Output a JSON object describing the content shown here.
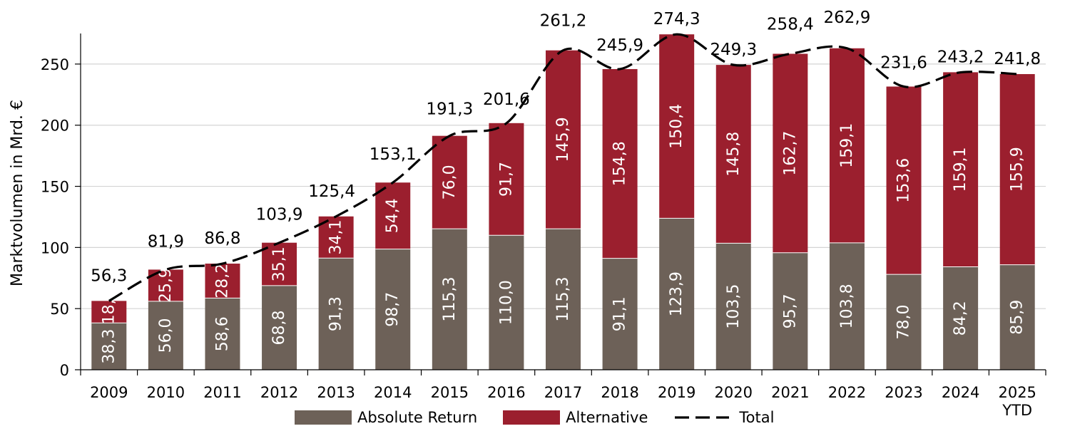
{
  "chart_data": {
    "type": "bar",
    "stacked": true,
    "categories": [
      "2009",
      "2010",
      "2011",
      "2012",
      "2013",
      "2014",
      "2015",
      "2016",
      "2017",
      "2018",
      "2019",
      "2020",
      "2021",
      "2022",
      "2023",
      "2024",
      "2025 YTD"
    ],
    "category_labels": [
      [
        "2009"
      ],
      [
        "2010"
      ],
      [
        "2011"
      ],
      [
        "2012"
      ],
      [
        "2013"
      ],
      [
        "2014"
      ],
      [
        "2015"
      ],
      [
        "2016"
      ],
      [
        "2017"
      ],
      [
        "2018"
      ],
      [
        "2019"
      ],
      [
        "2020"
      ],
      [
        "2021"
      ],
      [
        "2022"
      ],
      [
        "2023"
      ],
      [
        "2024"
      ],
      [
        "2025",
        "YTD"
      ]
    ],
    "series": [
      {
        "name": "Absolute Return",
        "color": "#6d6158",
        "values": [
          38.3,
          56.0,
          58.6,
          68.8,
          91.3,
          98.7,
          115.3,
          110.0,
          115.3,
          91.1,
          123.9,
          103.5,
          95.7,
          103.8,
          78.0,
          84.2,
          85.9
        ],
        "labels": [
          "38,3",
          "56,0",
          "58,6",
          "68,8",
          "91,3",
          "98,7",
          "115,3",
          "110,0",
          "115,3",
          "91,1",
          "123,9",
          "103,5",
          "95,7",
          "103,8",
          "78,0",
          "84,2",
          "85,9"
        ]
      },
      {
        "name": "Alternative",
        "color": "#9b1f2e",
        "values": [
          18.0,
          25.9,
          28.2,
          35.1,
          34.1,
          54.4,
          76.0,
          91.7,
          145.9,
          154.8,
          150.4,
          145.8,
          162.7,
          159.1,
          153.6,
          159.1,
          155.9
        ],
        "labels": [
          "18,",
          "25,9",
          "28,2",
          "35,1",
          "34,1",
          "54,4",
          "76,0",
          "91,7",
          "145,9",
          "154,8",
          "150,4",
          "145,8",
          "162,7",
          "159,1",
          "153,6",
          "159,1",
          "155,9"
        ]
      },
      {
        "name": "Total",
        "type": "line",
        "style": "dashed",
        "color": "#000000",
        "values": [
          56.3,
          81.9,
          86.8,
          103.9,
          125.4,
          153.1,
          191.3,
          201.6,
          261.2,
          245.9,
          274.3,
          249.3,
          258.4,
          262.9,
          231.6,
          243.2,
          241.8
        ],
        "labels": [
          "56,3",
          "81,9",
          "86,8",
          "103,9",
          "125,4",
          "153,1",
          "191,3",
          "201,6",
          "261,2",
          "245,9",
          "274,3",
          "249,3",
          "258,4",
          "262,9",
          "231,6",
          "243,2",
          "241,8"
        ]
      }
    ],
    "ylabel": "Marktvolumen in Mrd. €",
    "ylim": [
      0,
      275
    ],
    "yticks": [
      0,
      50,
      100,
      150,
      200,
      250
    ],
    "grid": true,
    "legend_position": "bottom"
  }
}
